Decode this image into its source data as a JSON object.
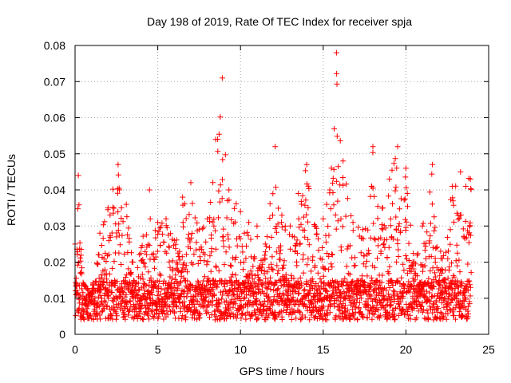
{
  "chart_data": {
    "type": "scatter",
    "title": "Day 198 of 2019, Rate Of TEC Index for receiver spja",
    "xlabel": "GPS time / hours",
    "ylabel": "ROTI / TECUs",
    "xlim": [
      0,
      25
    ],
    "ylim": [
      0,
      0.08
    ],
    "grid": true,
    "marker": "+",
    "color": "#ff0000",
    "x_ticks": [
      0,
      5,
      10,
      15,
      20,
      25
    ],
    "x_tick_labels": [
      "0",
      "5",
      "10",
      "15",
      "20",
      "25"
    ],
    "y_ticks": [
      0,
      0.01,
      0.02,
      0.03,
      0.04,
      0.05,
      0.06,
      0.07,
      0.08
    ],
    "y_tick_labels": [
      "0",
      "0.01",
      "0.02",
      "0.03",
      "0.04",
      "0.05",
      "0.06",
      "0.07",
      "0.08"
    ],
    "envelope": [
      {
        "x": 0.0,
        "max": 0.025
      },
      {
        "x": 0.2,
        "max": 0.044
      },
      {
        "x": 0.5,
        "max": 0.014
      },
      {
        "x": 1.0,
        "max": 0.011
      },
      {
        "x": 1.5,
        "max": 0.028
      },
      {
        "x": 2.0,
        "max": 0.035
      },
      {
        "x": 2.6,
        "max": 0.047
      },
      {
        "x": 3.1,
        "max": 0.036
      },
      {
        "x": 3.5,
        "max": 0.02
      },
      {
        "x": 4.0,
        "max": 0.024
      },
      {
        "x": 4.5,
        "max": 0.04
      },
      {
        "x": 5.0,
        "max": 0.031
      },
      {
        "x": 5.5,
        "max": 0.032
      },
      {
        "x": 6.0,
        "max": 0.026
      },
      {
        "x": 6.5,
        "max": 0.038
      },
      {
        "x": 7.0,
        "max": 0.042
      },
      {
        "x": 7.5,
        "max": 0.029
      },
      {
        "x": 8.0,
        "max": 0.032
      },
      {
        "x": 8.5,
        "max": 0.054
      },
      {
        "x": 8.9,
        "max": 0.071
      },
      {
        "x": 9.3,
        "max": 0.04
      },
      {
        "x": 10.0,
        "max": 0.034
      },
      {
        "x": 10.5,
        "max": 0.031
      },
      {
        "x": 11.0,
        "max": 0.03
      },
      {
        "x": 11.5,
        "max": 0.025
      },
      {
        "x": 12.1,
        "max": 0.052
      },
      {
        "x": 12.5,
        "max": 0.033
      },
      {
        "x": 13.0,
        "max": 0.03
      },
      {
        "x": 13.5,
        "max": 0.039
      },
      {
        "x": 14.0,
        "max": 0.047
      },
      {
        "x": 14.5,
        "max": 0.03
      },
      {
        "x": 15.0,
        "max": 0.032
      },
      {
        "x": 15.4,
        "max": 0.04
      },
      {
        "x": 15.8,
        "max": 0.078
      },
      {
        "x": 16.2,
        "max": 0.048
      },
      {
        "x": 16.8,
        "max": 0.031
      },
      {
        "x": 17.4,
        "max": 0.029
      },
      {
        "x": 18.0,
        "max": 0.052
      },
      {
        "x": 18.6,
        "max": 0.035
      },
      {
        "x": 19.0,
        "max": 0.043
      },
      {
        "x": 19.5,
        "max": 0.052
      },
      {
        "x": 20.0,
        "max": 0.046
      },
      {
        "x": 20.5,
        "max": 0.02
      },
      {
        "x": 21.0,
        "max": 0.03
      },
      {
        "x": 21.6,
        "max": 0.047
      },
      {
        "x": 22.2,
        "max": 0.021
      },
      {
        "x": 22.8,
        "max": 0.041
      },
      {
        "x": 23.3,
        "max": 0.045
      },
      {
        "x": 23.9,
        "max": 0.043
      }
    ]
  }
}
